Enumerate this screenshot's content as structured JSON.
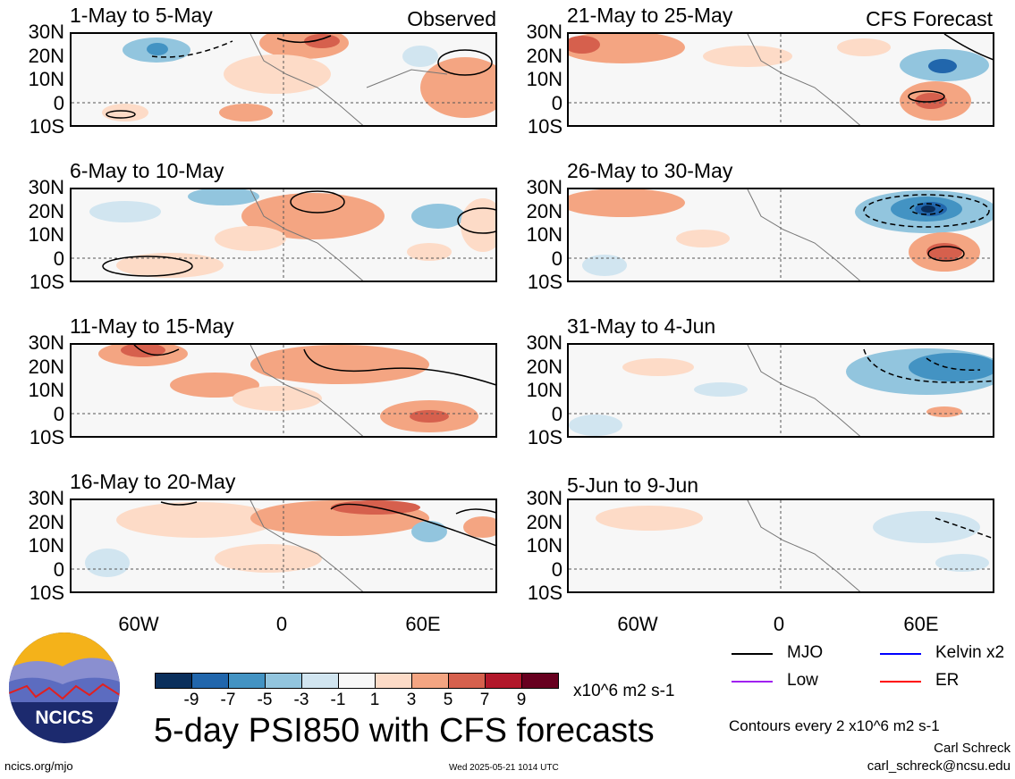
{
  "panels": {
    "left": [
      {
        "title": "1-May to 5-May",
        "label": "Observed"
      },
      {
        "title": "6-May to 10-May",
        "label": ""
      },
      {
        "title": "11-May to 15-May",
        "label": ""
      },
      {
        "title": "16-May to 20-May",
        "label": ""
      }
    ],
    "right": [
      {
        "title": "21-May to 25-May",
        "label": "CFS Forecast"
      },
      {
        "title": "26-May to 30-May",
        "label": ""
      },
      {
        "title": "31-May to 4-Jun",
        "label": ""
      },
      {
        "title": "5-Jun to 9-Jun",
        "label": ""
      }
    ]
  },
  "lat_labels": [
    "30N",
    "20N",
    "10N",
    "0",
    "10S"
  ],
  "lon_labels": [
    "60W",
    "0",
    "60E"
  ],
  "colorbar": {
    "colors": [
      "#0a2f5c",
      "#2166ac",
      "#4393c3",
      "#92c5de",
      "#d1e5f0",
      "#f7f7f7",
      "#fddbc7",
      "#f4a582",
      "#d6604d",
      "#b2182b",
      "#67001f"
    ],
    "labels": [
      "-9",
      "-7",
      "-5",
      "-3",
      "-1",
      "1",
      "3",
      "5",
      "7",
      "9"
    ],
    "units": "x10^6 m2 s-1"
  },
  "title": "5-day PSI850 with CFS forecasts",
  "legend": {
    "items": [
      {
        "name": "MJO",
        "color": "#000000"
      },
      {
        "name": "Kelvin x2",
        "color": "#0000ff"
      },
      {
        "name": "Low",
        "color": "#a020f0"
      },
      {
        "name": "ER",
        "color": "#ff0000"
      }
    ],
    "contour_note": "Contours every 2 x10^6 m2 s-1",
    "author": "Carl Schreck",
    "email": "carl_schreck@ncsu.edu"
  },
  "footer": {
    "url": "ncics.org/mjo",
    "timestamp": "Wed 2025-05-21 1014 UTC"
  },
  "logo": {
    "text": "NCICS"
  }
}
